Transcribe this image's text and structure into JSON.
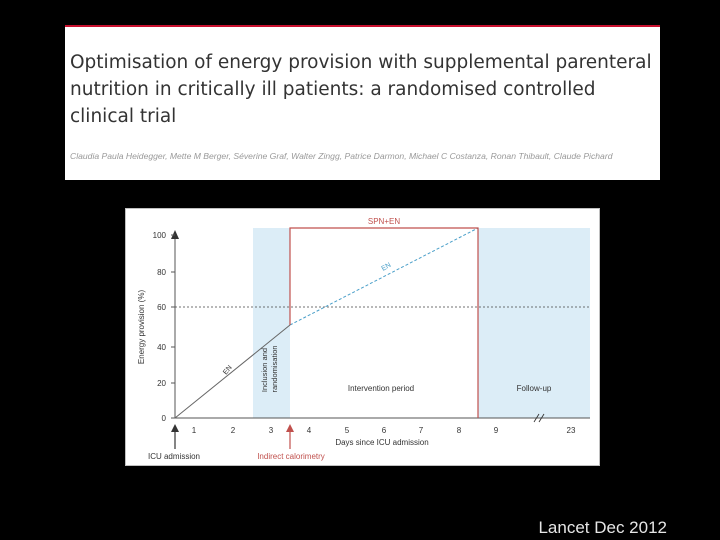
{
  "header": {
    "title": "Optimisation of energy provision with supplemental parenteral nutrition in critically ill patients: a randomised controlled clinical trial",
    "authors": "Claudia Paula Heidegger, Mette M Berger, Séverine Graf, Walter Zingg, Patrice Darmon, Michael C Costanza, Ronan Thibault, Claude Pichard"
  },
  "figure": {
    "y_axis_label": "Energy provision (%)",
    "x_axis_label": "Days since ICU admission",
    "y_ticks": [
      "0",
      "20",
      "40",
      "60",
      "80",
      "100"
    ],
    "x_ticks": [
      "1",
      "2",
      "3",
      "4",
      "5",
      "6",
      "7",
      "8",
      "9",
      "23"
    ],
    "labels": {
      "sup_label": "SPN+EN",
      "en_label": "EN",
      "en_only_label": "EN",
      "inclusion": "Inclusion and randomisation",
      "intervention": "Intervention period",
      "follow_up": "Follow-up",
      "icu_admission": "ICU admission",
      "calorimetry": "Indirect calorimetry"
    },
    "colors": {
      "spn": "#c0504d",
      "en": "#4a9fc9",
      "shade": "#dcedf7",
      "axis": "#555555"
    }
  },
  "citation": "Lancet Dec 2012"
}
